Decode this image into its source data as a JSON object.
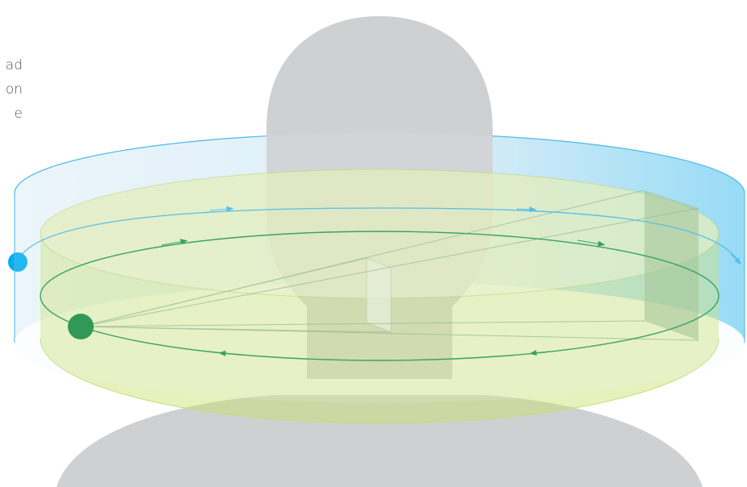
{
  "text_lines": [
    "ad",
    "on",
    "e"
  ]
}
